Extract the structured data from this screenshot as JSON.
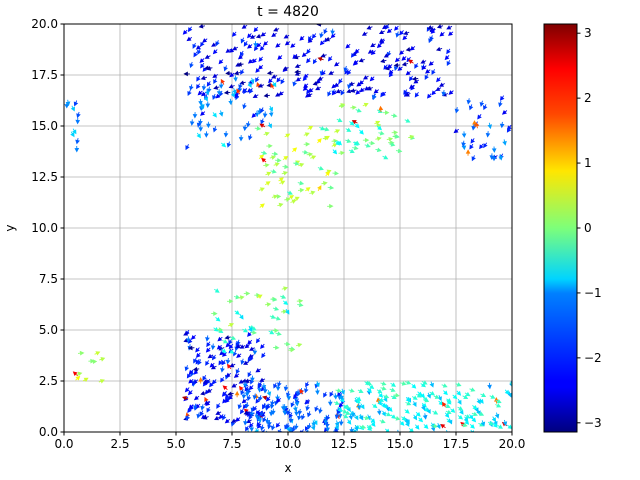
{
  "chart_data": {
    "type": "quiver",
    "title": "t = 4820",
    "xlabel": "x",
    "ylabel": "y",
    "xlim": [
      0.0,
      20.0
    ],
    "ylim": [
      0.0,
      20.0
    ],
    "grid": true,
    "xticks": [
      "0.0",
      "2.5",
      "5.0",
      "7.5",
      "10.0",
      "12.5",
      "15.0",
      "17.5",
      "20.0"
    ],
    "yticks": [
      "0.0",
      "2.5",
      "5.0",
      "7.5",
      "10.0",
      "12.5",
      "15.0",
      "17.5",
      "20.0"
    ],
    "colorbar": {
      "colormap": "jet",
      "range": [
        -3.14159,
        3.14159
      ],
      "ticks": [
        "3",
        "2",
        "1",
        "0",
        "−1",
        "−2",
        "−3"
      ],
      "tick_values": [
        3,
        2,
        1,
        0,
        -1,
        -2,
        -3
      ]
    },
    "clusters": [
      {
        "region": "top",
        "x_range": [
          5.5,
          17.5
        ],
        "y_range": [
          16.5,
          20.0
        ],
        "approx_count": 260,
        "dominant_value": -2.4
      },
      {
        "region": "upper-left-middle",
        "x_range": [
          5.5,
          9.5
        ],
        "y_range": [
          14.0,
          17.5
        ],
        "approx_count": 50,
        "dominant_value": -1.6
      },
      {
        "region": "center-yellow",
        "x_range": [
          8.5,
          12.0
        ],
        "y_range": [
          11.0,
          15.0
        ],
        "approx_count": 60,
        "dominant_value": 0.3
      },
      {
        "region": "center-right",
        "x_range": [
          12.0,
          15.5
        ],
        "y_range": [
          13.5,
          16.0
        ],
        "approx_count": 45,
        "dominant_value": -0.3
      },
      {
        "region": "right-edge",
        "x_range": [
          17.5,
          20.0
        ],
        "y_range": [
          13.5,
          16.5
        ],
        "approx_count": 35,
        "dominant_value": -2.0
      },
      {
        "region": "left-edge",
        "x_range": [
          0.0,
          0.8
        ],
        "y_range": [
          14.0,
          16.5
        ],
        "approx_count": 10,
        "dominant_value": -1.5
      },
      {
        "region": "lower-left",
        "x_range": [
          5.5,
          9.0
        ],
        "y_range": [
          0.5,
          5.0
        ],
        "approx_count": 160,
        "dominant_value": -2.3
      },
      {
        "region": "lower-upper-green",
        "x_range": [
          6.5,
          10.5
        ],
        "y_range": [
          4.0,
          7.0
        ],
        "approx_count": 45,
        "dominant_value": -0.3
      },
      {
        "region": "bottom-middle",
        "x_range": [
          8.0,
          12.5
        ],
        "y_range": [
          0.0,
          2.5
        ],
        "approx_count": 140,
        "dominant_value": -1.8
      },
      {
        "region": "bottom-right",
        "x_range": [
          12.0,
          20.0
        ],
        "y_range": [
          0.0,
          2.5
        ],
        "approx_count": 180,
        "dominant_value": -0.8
      },
      {
        "region": "small-left",
        "x_range": [
          0.5,
          1.6
        ],
        "y_range": [
          2.3,
          4.0
        ],
        "approx_count": 10,
        "dominant_value": 0.3
      }
    ]
  }
}
